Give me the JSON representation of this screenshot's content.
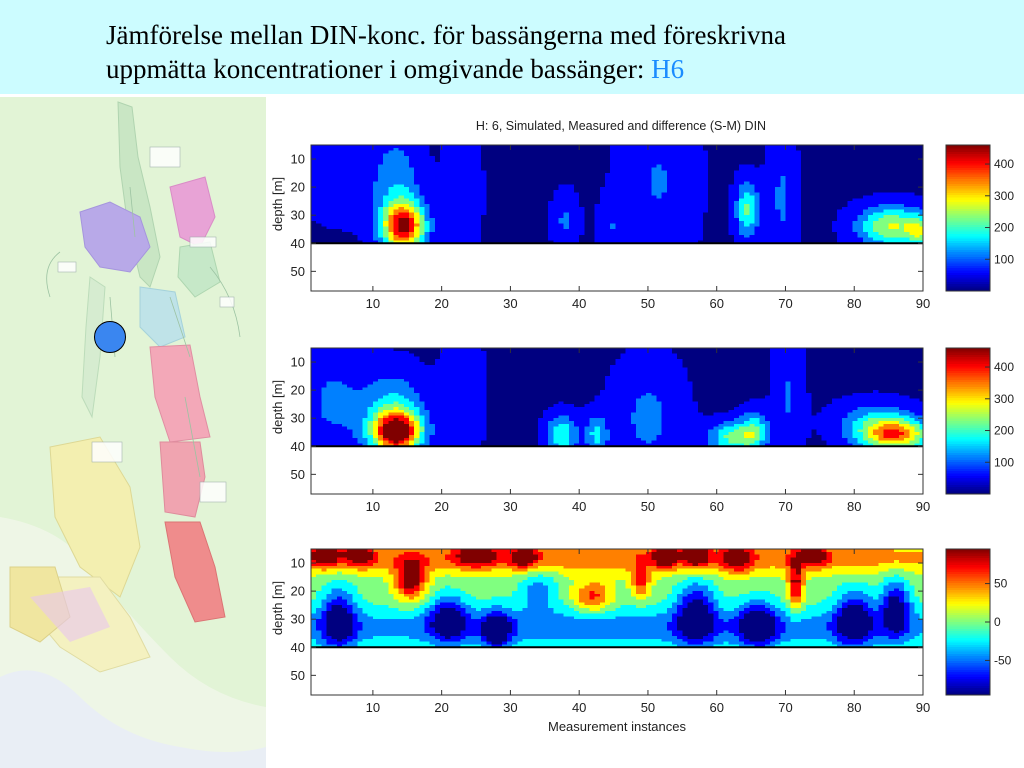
{
  "slide": {
    "title_line1": "Jämförelse mellan DIN-konc. för bassängerna med föreskrivna",
    "title_line2": "uppmätta koncentrationer i omgivande bassänger: ",
    "title_accent": "H6"
  },
  "colors": {
    "header_bg": "#ccfcff",
    "accent": "#1a8cff",
    "marker": "#3a86f0",
    "map_bg": "#dff5d3"
  },
  "chart_data": [
    {
      "type": "heatmap",
      "title": "H: 6, Simulated, Measured and difference (S-M) DIN",
      "ylabel": "depth [m]",
      "xlabel": "",
      "xlim": [
        1,
        90
      ],
      "ylim": [
        57,
        5
      ],
      "xticks": [
        10,
        20,
        30,
        40,
        50,
        60,
        70,
        80,
        90
      ],
      "yticks": [
        10,
        20,
        30,
        40,
        50
      ],
      "bottom_depth": 40,
      "colorbar": {
        "min": 0,
        "max": 460,
        "ticks": [
          100,
          200,
          300,
          400
        ]
      },
      "base_value": 40,
      "features": [
        {
          "x": 14.5,
          "y": 34,
          "value": 380,
          "sx": 2.2,
          "sy": 6
        },
        {
          "x": 13.5,
          "y": 20,
          "value": 140,
          "sx": 2.5,
          "sy": 14
        },
        {
          "x": 5,
          "y": 18,
          "value": 90,
          "sx": 3.5,
          "sy": 10
        },
        {
          "x": 23,
          "y": 22,
          "value": 95,
          "sx": 1.8,
          "sy": 18
        },
        {
          "x": 38,
          "y": 32,
          "value": 110,
          "sx": 1.3,
          "sy": 7
        },
        {
          "x": 44.5,
          "y": 34,
          "value": 95,
          "sx": 1.1,
          "sy": 7
        },
        {
          "x": 51.5,
          "y": 18,
          "value": 105,
          "sx": 3.8,
          "sy": 22
        },
        {
          "x": 64.5,
          "y": 28,
          "value": 210,
          "sx": 1.2,
          "sy": 7
        },
        {
          "x": 69.5,
          "y": 24,
          "value": 110,
          "sx": 1.5,
          "sy": 16
        },
        {
          "x": 85.5,
          "y": 34,
          "value": 260,
          "sx": 3.5,
          "sy": 5
        },
        {
          "x": 89.5,
          "y": 36,
          "value": 180,
          "sx": 1.2,
          "sy": 4
        }
      ]
    },
    {
      "type": "heatmap",
      "title": "",
      "ylabel": "depth [m]",
      "xlabel": "",
      "xlim": [
        1,
        90
      ],
      "ylim": [
        57,
        5
      ],
      "xticks": [
        10,
        20,
        30,
        40,
        50,
        60,
        70,
        80,
        90
      ],
      "yticks": [
        10,
        20,
        30,
        40,
        50
      ],
      "bottom_depth": 40,
      "colorbar": {
        "min": 0,
        "max": 460,
        "ticks": [
          100,
          200,
          300,
          400
        ]
      },
      "base_value": 40,
      "features": [
        {
          "x": 13.5,
          "y": 35,
          "value": 420,
          "sx": 2.4,
          "sy": 5
        },
        {
          "x": 13,
          "y": 28,
          "value": 170,
          "sx": 3.2,
          "sy": 10
        },
        {
          "x": 4,
          "y": 24,
          "value": 110,
          "sx": 3.5,
          "sy": 14
        },
        {
          "x": 23,
          "y": 22,
          "value": 95,
          "sx": 2,
          "sy": 18
        },
        {
          "x": 37.5,
          "y": 36,
          "value": 200,
          "sx": 1.6,
          "sy": 5
        },
        {
          "x": 42.5,
          "y": 36,
          "value": 160,
          "sx": 1.2,
          "sy": 5
        },
        {
          "x": 50,
          "y": 30,
          "value": 115,
          "sx": 3.6,
          "sy": 14
        },
        {
          "x": 62.5,
          "y": 37,
          "value": 220,
          "sx": 2.6,
          "sy": 4
        },
        {
          "x": 65.5,
          "y": 34,
          "value": 170,
          "sx": 1.4,
          "sy": 5
        },
        {
          "x": 70.5,
          "y": 22,
          "value": 105,
          "sx": 1.5,
          "sy": 18
        },
        {
          "x": 86,
          "y": 36,
          "value": 330,
          "sx": 3.6,
          "sy": 4
        },
        {
          "x": 83,
          "y": 31,
          "value": 140,
          "sx": 4,
          "sy": 5
        }
      ]
    },
    {
      "type": "heatmap",
      "title": "",
      "ylabel": "depth [m]",
      "xlabel": "Measurement instances",
      "xlim": [
        1,
        90
      ],
      "ylim": [
        57,
        5
      ],
      "xticks": [
        10,
        20,
        30,
        40,
        50,
        60,
        70,
        80,
        90
      ],
      "yticks": [
        10,
        20,
        30,
        40,
        50
      ],
      "bottom_depth": 40,
      "colorbar": {
        "min": -95,
        "max": 95,
        "ticks": [
          50,
          0,
          -50
        ]
      },
      "base_value": 0,
      "features": [
        {
          "x": 45,
          "y": 8,
          "value": 50,
          "sx": 60,
          "sy": 4
        },
        {
          "x": 45,
          "y": 33,
          "value": -45,
          "sx": 60,
          "sy": 5
        },
        {
          "x": 15.5,
          "y": 16,
          "value": 90,
          "sx": 1.6,
          "sy": 5
        },
        {
          "x": 3,
          "y": 7,
          "value": 80,
          "sx": 1.5,
          "sy": 3
        },
        {
          "x": 8,
          "y": 7,
          "value": 70,
          "sx": 1.5,
          "sy": 3
        },
        {
          "x": 25,
          "y": 7,
          "value": 70,
          "sx": 2,
          "sy": 3
        },
        {
          "x": 32,
          "y": 8,
          "value": 60,
          "sx": 1.5,
          "sy": 3
        },
        {
          "x": 52.5,
          "y": 7,
          "value": 90,
          "sx": 1.2,
          "sy": 3
        },
        {
          "x": 57,
          "y": 7,
          "value": 90,
          "sx": 1.2,
          "sy": 3
        },
        {
          "x": 63,
          "y": 8,
          "value": 60,
          "sx": 1.5,
          "sy": 4
        },
        {
          "x": 74,
          "y": 7,
          "value": 65,
          "sx": 1.5,
          "sy": 3
        },
        {
          "x": 71.5,
          "y": 18,
          "value": 80,
          "sx": 0.8,
          "sy": 6
        },
        {
          "x": 49,
          "y": 17,
          "value": 55,
          "sx": 1,
          "sy": 4
        },
        {
          "x": 5,
          "y": 30,
          "value": -80,
          "sx": 1.8,
          "sy": 8
        },
        {
          "x": 21,
          "y": 30,
          "value": -75,
          "sx": 2,
          "sy": 6
        },
        {
          "x": 28,
          "y": 34,
          "value": -80,
          "sx": 1.5,
          "sy": 5
        },
        {
          "x": 57,
          "y": 28,
          "value": -85,
          "sx": 2,
          "sy": 8
        },
        {
          "x": 66,
          "y": 32,
          "value": -80,
          "sx": 2,
          "sy": 6
        },
        {
          "x": 80,
          "y": 30,
          "value": -85,
          "sx": 2,
          "sy": 7
        },
        {
          "x": 86,
          "y": 26,
          "value": -85,
          "sx": 1.5,
          "sy": 7
        },
        {
          "x": 42,
          "y": 22,
          "value": 60,
          "sx": 2,
          "sy": 4
        },
        {
          "x": 34,
          "y": 20,
          "value": -40,
          "sx": 2,
          "sy": 6
        }
      ]
    }
  ]
}
